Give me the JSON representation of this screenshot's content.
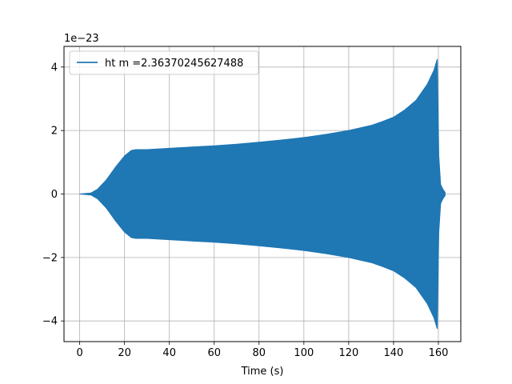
{
  "chart_data": {
    "type": "line",
    "xlabel": "Time (s)",
    "ylabel": "",
    "y_offset_label": "1e−23",
    "xlim": [
      -7,
      170
    ],
    "ylim": [
      -4.65,
      4.65
    ],
    "x_ticks": [
      0,
      20,
      40,
      60,
      80,
      100,
      120,
      140,
      160
    ],
    "y_ticks": [
      -4,
      -2,
      0,
      2,
      4
    ],
    "grid": true,
    "legend_placement": "upper-left",
    "series": [
      {
        "name": "ht m =2.36370245627488",
        "color": "#1f77b4",
        "style": "oscillating-envelope",
        "envelope": {
          "x": [
            0,
            5,
            8,
            12,
            16,
            20,
            23,
            25,
            30,
            40,
            50,
            60,
            70,
            80,
            90,
            95,
            100,
            110,
            120,
            130,
            135,
            140,
            145,
            150,
            155,
            158,
            159.5,
            160.2,
            161,
            162,
            163
          ],
          "upper": [
            0.0,
            0.03,
            0.15,
            0.45,
            0.85,
            1.2,
            1.37,
            1.4,
            1.4,
            1.44,
            1.48,
            1.52,
            1.57,
            1.63,
            1.7,
            1.74,
            1.78,
            1.88,
            2.0,
            2.16,
            2.28,
            2.42,
            2.65,
            2.95,
            3.45,
            3.9,
            4.25,
            1.2,
            0.3,
            0.15,
            0.05
          ],
          "lower": [
            0.0,
            -0.03,
            -0.15,
            -0.45,
            -0.85,
            -1.2,
            -1.37,
            -1.4,
            -1.4,
            -1.44,
            -1.48,
            -1.52,
            -1.57,
            -1.63,
            -1.7,
            -1.74,
            -1.78,
            -1.88,
            -2.0,
            -2.16,
            -2.28,
            -2.42,
            -2.65,
            -2.95,
            -3.45,
            -3.9,
            -4.25,
            -1.2,
            -0.3,
            -0.15,
            -0.05
          ]
        }
      }
    ]
  }
}
